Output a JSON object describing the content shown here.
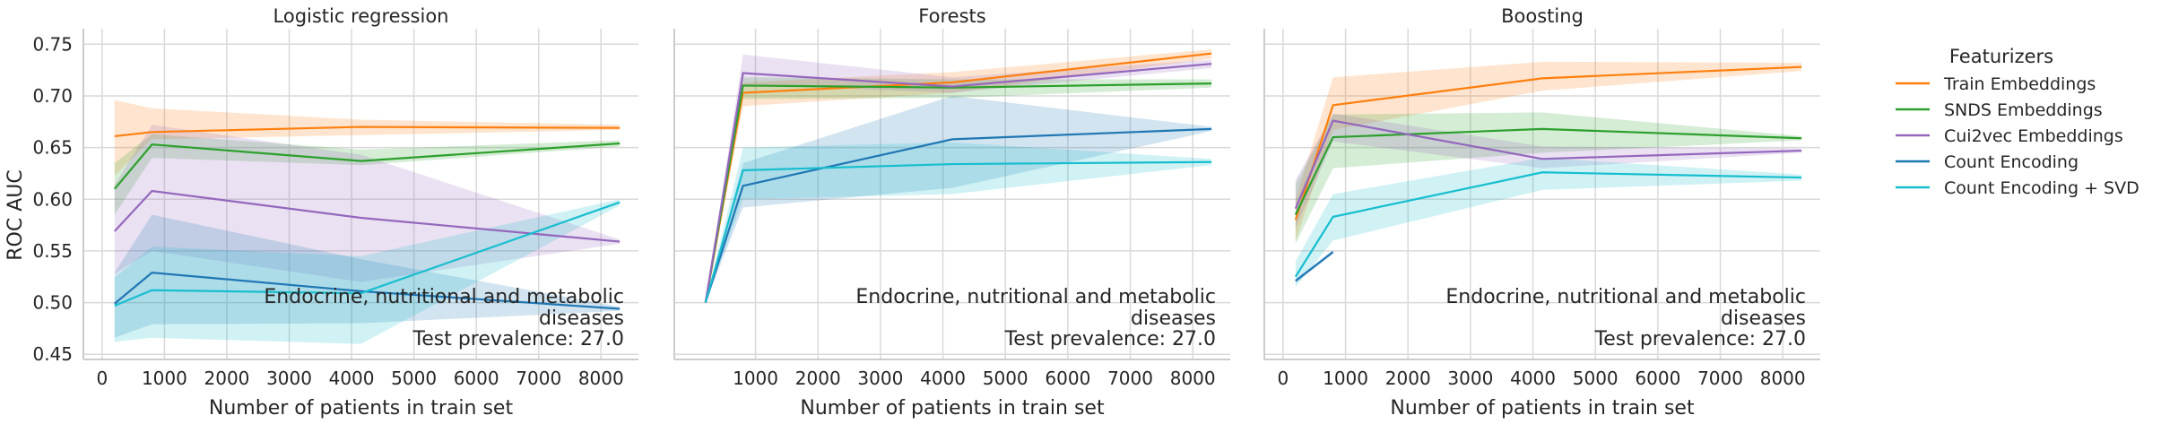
{
  "figure": {
    "ylabel": "ROC AUC",
    "xlabel": "Number of patients in train set",
    "legend_title": "Featurizers",
    "annotation_line1": "Endocrine, nutritional and metabolic",
    "annotation_line2": "diseases",
    "annotation_line3": "Test prevalence: 27.0"
  },
  "legend": [
    {
      "name": "Train Embeddings",
      "color": "#ff7f0e"
    },
    {
      "name": "SNDS Embeddings",
      "color": "#2ca02c"
    },
    {
      "name": "Cui2vec Embeddings",
      "color": "#9467bd"
    },
    {
      "name": "Count Encoding",
      "color": "#1f77b4"
    },
    {
      "name": "Count Encoding + SVD",
      "color": "#17becf"
    }
  ],
  "chart_data": [
    {
      "type": "line",
      "title": "Logistic regression",
      "xlabel": "Number of patients in train set",
      "ylabel": "ROC AUC",
      "xlim": [
        -300,
        8600
      ],
      "ylim": [
        0.445,
        0.765
      ],
      "xticks": [
        0,
        1000,
        2000,
        3000,
        4000,
        5000,
        6000,
        7000,
        8000
      ],
      "yticks": [
        0.45,
        0.5,
        0.55,
        0.6,
        0.65,
        0.7,
        0.75
      ],
      "grid": true,
      "series": [
        {
          "name": "Train Embeddings",
          "color": "#ff7f0e",
          "x": [
            200,
            800,
            4150,
            8300
          ],
          "y": [
            0.661,
            0.665,
            0.67,
            0.669
          ],
          "lower": [
            0.623,
            0.658,
            0.662,
            0.667
          ],
          "upper": [
            0.696,
            0.688,
            0.677,
            0.672
          ]
        },
        {
          "name": "SNDS Embeddings",
          "color": "#2ca02c",
          "x": [
            200,
            800,
            4150,
            8300
          ],
          "y": [
            0.61,
            0.653,
            0.637,
            0.654
          ],
          "lower": [
            0.585,
            0.64,
            0.633,
            0.651
          ],
          "upper": [
            0.635,
            0.663,
            0.648,
            0.657
          ]
        },
        {
          "name": "Cui2vec Embeddings",
          "color": "#9467bd",
          "x": [
            200,
            800,
            4150,
            8300
          ],
          "y": [
            0.569,
            0.608,
            0.582,
            0.559
          ],
          "lower": [
            0.528,
            0.55,
            0.52,
            0.557
          ],
          "upper": [
            0.614,
            0.672,
            0.643,
            0.561
          ]
        },
        {
          "name": "Count Encoding",
          "color": "#1f77b4",
          "x": [
            200,
            800,
            4150,
            8300
          ],
          "y": [
            0.499,
            0.529,
            0.511,
            0.494
          ],
          "lower": [
            0.466,
            0.479,
            0.48,
            0.492
          ],
          "upper": [
            0.529,
            0.585,
            0.542,
            0.496
          ]
        },
        {
          "name": "Count Encoding + SVD",
          "color": "#17becf",
          "x": [
            200,
            800,
            4150,
            8300
          ],
          "y": [
            0.497,
            0.512,
            0.509,
            0.597
          ],
          "lower": [
            0.462,
            0.466,
            0.46,
            0.594
          ],
          "upper": [
            0.524,
            0.554,
            0.545,
            0.6
          ]
        }
      ]
    },
    {
      "type": "line",
      "title": "Forests",
      "xlabel": "Number of patients in train set",
      "ylabel": "",
      "xlim": [
        -300,
        8600
      ],
      "ylim": [
        0.445,
        0.765
      ],
      "xticks": [
        1000,
        2000,
        3000,
        4000,
        5000,
        6000,
        7000,
        8000
      ],
      "yticks": [
        0.45,
        0.5,
        0.55,
        0.6,
        0.65,
        0.7,
        0.75
      ],
      "grid": true,
      "series": [
        {
          "name": "Train Embeddings",
          "color": "#ff7f0e",
          "x": [
            200,
            800,
            4150,
            8300
          ],
          "y": [
            0.5,
            0.703,
            0.713,
            0.741
          ],
          "lower": [
            0.5,
            0.69,
            0.703,
            0.736
          ],
          "upper": [
            0.5,
            0.713,
            0.723,
            0.745
          ]
        },
        {
          "name": "SNDS Embeddings",
          "color": "#2ca02c",
          "x": [
            200,
            800,
            4150,
            8300
          ],
          "y": [
            0.5,
            0.71,
            0.708,
            0.712
          ],
          "lower": [
            0.5,
            0.697,
            0.698,
            0.708
          ],
          "upper": [
            0.5,
            0.718,
            0.716,
            0.716
          ]
        },
        {
          "name": "Cui2vec Embeddings",
          "color": "#9467bd",
          "x": [
            200,
            800,
            4150,
            8300
          ],
          "y": [
            0.5,
            0.722,
            0.709,
            0.731
          ],
          "lower": [
            0.5,
            0.711,
            0.703,
            0.727
          ],
          "upper": [
            0.5,
            0.74,
            0.718,
            0.735
          ]
        },
        {
          "name": "Count Encoding",
          "color": "#1f77b4",
          "x": [
            200,
            800,
            4150,
            8300
          ],
          "y": [
            0.5,
            0.613,
            0.658,
            0.668
          ],
          "lower": [
            0.5,
            0.592,
            0.611,
            0.666
          ],
          "upper": [
            0.5,
            0.635,
            0.7,
            0.67
          ]
        },
        {
          "name": "Count Encoding + SVD",
          "color": "#17becf",
          "x": [
            200,
            800,
            4150,
            8300
          ],
          "y": [
            0.5,
            0.628,
            0.634,
            0.636
          ],
          "lower": [
            0.5,
            0.6,
            0.605,
            0.633
          ],
          "upper": [
            0.5,
            0.65,
            0.655,
            0.639
          ]
        }
      ]
    },
    {
      "type": "line",
      "title": "Boosting",
      "xlabel": "Number of patients in train set",
      "ylabel": "",
      "xlim": [
        -300,
        8600
      ],
      "ylim": [
        0.445,
        0.765
      ],
      "xticks": [
        0,
        1000,
        2000,
        3000,
        4000,
        5000,
        6000,
        7000,
        8000
      ],
      "yticks": [
        0.45,
        0.5,
        0.55,
        0.6,
        0.65,
        0.7,
        0.75
      ],
      "grid": true,
      "series": [
        {
          "name": "Train Embeddings",
          "color": "#ff7f0e",
          "x": [
            200,
            800,
            4150,
            8300
          ],
          "y": [
            0.58,
            0.691,
            0.717,
            0.728
          ],
          "lower": [
            0.56,
            0.667,
            0.705,
            0.724
          ],
          "upper": [
            0.6,
            0.718,
            0.733,
            0.732
          ]
        },
        {
          "name": "SNDS Embeddings",
          "color": "#2ca02c",
          "x": [
            200,
            800,
            4150,
            8300
          ],
          "y": [
            0.585,
            0.66,
            0.668,
            0.659
          ],
          "lower": [
            0.557,
            0.63,
            0.645,
            0.657
          ],
          "upper": [
            0.615,
            0.682,
            0.684,
            0.661
          ]
        },
        {
          "name": "Cui2vec Embeddings",
          "color": "#9467bd",
          "x": [
            200,
            800,
            4150,
            8300
          ],
          "y": [
            0.591,
            0.676,
            0.639,
            0.647
          ],
          "lower": [
            0.572,
            0.656,
            0.63,
            0.645
          ],
          "upper": [
            0.619,
            0.683,
            0.651,
            0.649
          ]
        },
        {
          "name": "Count Encoding",
          "color": "#1f77b4",
          "x": [
            200,
            800
          ],
          "y": [
            0.521,
            0.549
          ],
          "lower": [
            0.519,
            0.547
          ],
          "upper": [
            0.523,
            0.551
          ]
        },
        {
          "name": "Count Encoding + SVD",
          "color": "#17becf",
          "x": [
            200,
            800,
            4150,
            8300
          ],
          "y": [
            0.525,
            0.583,
            0.626,
            0.621
          ],
          "lower": [
            0.515,
            0.56,
            0.609,
            0.618
          ],
          "upper": [
            0.54,
            0.605,
            0.64,
            0.624
          ]
        }
      ]
    }
  ]
}
